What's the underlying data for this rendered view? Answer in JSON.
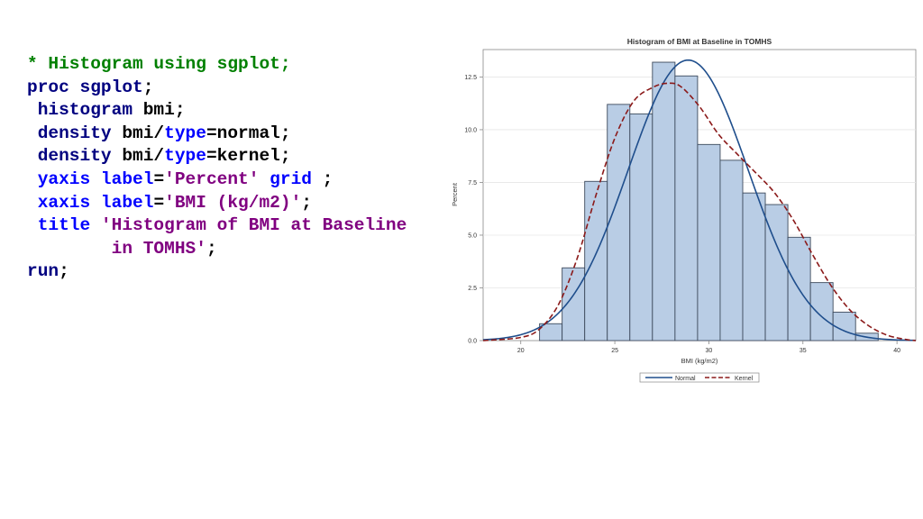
{
  "code": {
    "lines": [
      [
        {
          "t": "* Histogram using sgplot;",
          "c": "comment"
        }
      ],
      [
        {
          "t": "proc sgplot",
          "c": "kw"
        },
        {
          "t": ";",
          "c": "plain"
        }
      ],
      [
        {
          "t": " histogram",
          "c": "kw"
        },
        {
          "t": " bmi;",
          "c": "plain"
        }
      ],
      [
        {
          "t": " density",
          "c": "kw"
        },
        {
          "t": " bmi/",
          "c": "plain"
        },
        {
          "t": "type",
          "c": "kw2"
        },
        {
          "t": "=normal;",
          "c": "plain"
        }
      ],
      [
        {
          "t": " density",
          "c": "kw"
        },
        {
          "t": " bmi/",
          "c": "plain"
        },
        {
          "t": "type",
          "c": "kw2"
        },
        {
          "t": "=kernel;",
          "c": "plain"
        }
      ],
      [
        {
          "t": " yaxis",
          "c": "kw2"
        },
        {
          "t": " ",
          "c": "plain"
        },
        {
          "t": "label",
          "c": "kw2"
        },
        {
          "t": "=",
          "c": "plain"
        },
        {
          "t": "'Percent'",
          "c": "str"
        },
        {
          "t": " ",
          "c": "plain"
        },
        {
          "t": "grid",
          "c": "kw2"
        },
        {
          "t": " ;",
          "c": "plain"
        }
      ],
      [
        {
          "t": " xaxis",
          "c": "kw2"
        },
        {
          "t": " ",
          "c": "plain"
        },
        {
          "t": "label",
          "c": "kw2"
        },
        {
          "t": "=",
          "c": "plain"
        },
        {
          "t": "'BMI (kg/m2)'",
          "c": "str"
        },
        {
          "t": ";",
          "c": "plain"
        }
      ],
      [
        {
          "t": " title",
          "c": "kw2"
        },
        {
          "t": " 'Histogram of BMI at Baseline",
          "c": "str"
        }
      ],
      [
        {
          "t": "        in TOMHS'",
          "c": "str"
        },
        {
          "t": ";",
          "c": "plain"
        }
      ],
      [
        {
          "t": "run",
          "c": "kw"
        },
        {
          "t": ";",
          "c": "plain"
        }
      ]
    ]
  },
  "chart_data": {
    "type": "bar",
    "title": "Histogram of BMI at Baseline in TOMHS",
    "xlabel": "BMI (kg/m2)",
    "ylabel": "Percent",
    "xlim": [
      18,
      41
    ],
    "ylim": [
      0,
      13.8
    ],
    "xticks": [
      20,
      25,
      30,
      35,
      40
    ],
    "yticks": [
      0.0,
      2.5,
      5.0,
      7.5,
      10.0,
      12.5
    ],
    "ytick_labels": [
      "0.0",
      "2.5",
      "5.0",
      "7.5",
      "10.0",
      "12.5"
    ],
    "grid": true,
    "bin_width": 1.2,
    "bins": [
      {
        "x": 21.6,
        "value": 0.8
      },
      {
        "x": 22.8,
        "value": 3.45
      },
      {
        "x": 24.0,
        "value": 7.55
      },
      {
        "x": 25.2,
        "value": 11.2
      },
      {
        "x": 26.4,
        "value": 10.75
      },
      {
        "x": 27.6,
        "value": 13.2
      },
      {
        "x": 28.8,
        "value": 12.55
      },
      {
        "x": 30.0,
        "value": 9.3
      },
      {
        "x": 31.2,
        "value": 8.55
      },
      {
        "x": 32.4,
        "value": 7.0
      },
      {
        "x": 33.6,
        "value": 6.45
      },
      {
        "x": 34.8,
        "value": 4.9
      },
      {
        "x": 36.0,
        "value": 2.75
      },
      {
        "x": 37.2,
        "value": 1.35
      },
      {
        "x": 38.4,
        "value": 0.35
      }
    ],
    "normal": {
      "mean": 28.9,
      "sd": 3.2,
      "peak": 13.3
    },
    "kernel": {
      "x": [
        18.0,
        20.0,
        21.0,
        22.0,
        23.0,
        24.0,
        25.0,
        26.0,
        27.0,
        27.8,
        28.5,
        29.5,
        30.5,
        31.5,
        32.5,
        33.5,
        34.5,
        35.5,
        36.5,
        37.5,
        38.5,
        39.5,
        40.5,
        41.0
      ],
      "y": [
        0.0,
        0.15,
        0.55,
        1.7,
        3.9,
        6.9,
        9.6,
        11.35,
        12.0,
        12.2,
        12.05,
        11.1,
        9.8,
        8.85,
        7.95,
        7.0,
        5.7,
        4.1,
        2.6,
        1.45,
        0.7,
        0.25,
        0.05,
        0.0
      ]
    },
    "legend": {
      "position": "bottom",
      "entries": [
        "Normal",
        "Kernel"
      ]
    },
    "colors": {
      "bar_fill": "#b9cde5",
      "bar_stroke": "#3d4a5c",
      "normal": "#1f4e8c",
      "kernel": "#8b1a1a",
      "grid": "#e6e6e6",
      "axis": "#888888",
      "text": "#333333"
    }
  }
}
